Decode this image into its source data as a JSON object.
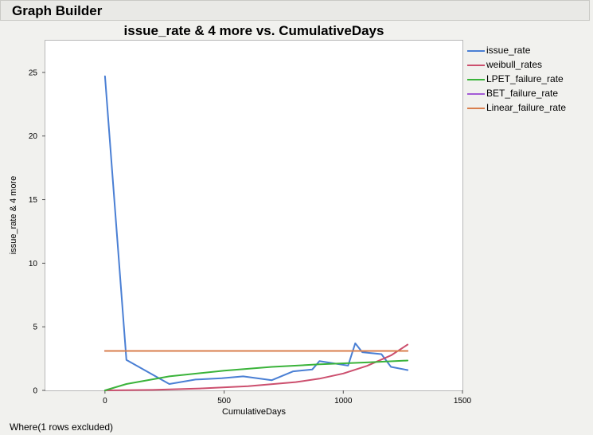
{
  "window": {
    "title": "Graph Builder"
  },
  "footnote": "Where(1 rows excluded)",
  "chart_data": {
    "type": "line",
    "title": "issue_rate & 4 more vs. CumulativeDays",
    "xlabel": "CumulativeDays",
    "ylabel": "issue_rate & 4 more",
    "xlim": [
      -250,
      1500
    ],
    "ylim": [
      0,
      27.5
    ],
    "x_ticks": [
      0,
      500,
      1000,
      1500
    ],
    "y_ticks": [
      0,
      5,
      10,
      15,
      20,
      25
    ],
    "grid": false,
    "legend_position": "right",
    "series": [
      {
        "name": "issue_rate",
        "color": "#4a7fd4",
        "x": [
          0,
          90,
          270,
          380,
          490,
          580,
          700,
          790,
          870,
          900,
          1020,
          1050,
          1080,
          1160,
          1200,
          1270
        ],
        "y": [
          24.7,
          2.4,
          0.5,
          0.85,
          0.95,
          1.1,
          0.8,
          1.5,
          1.65,
          2.3,
          1.95,
          3.7,
          3.0,
          2.85,
          1.85,
          1.6
        ]
      },
      {
        "name": "weibull_rates",
        "color": "#cc4f6e",
        "x": [
          0,
          200,
          400,
          600,
          800,
          900,
          1000,
          1100,
          1200,
          1270
        ],
        "y": [
          0,
          0.04,
          0.15,
          0.33,
          0.65,
          0.92,
          1.33,
          1.93,
          2.75,
          3.6
        ]
      },
      {
        "name": "LPET_failure_rate",
        "color": "#3ab33a",
        "x": [
          0,
          90,
          270,
          500,
          700,
          900,
          1100,
          1270
        ],
        "y": [
          0,
          0.5,
          1.1,
          1.55,
          1.85,
          2.05,
          2.2,
          2.35
        ]
      },
      {
        "name": "BET_failure_rate",
        "color": "#a35bd6",
        "x": [
          0,
          1270
        ],
        "y": [
          3.1,
          3.1
        ]
      },
      {
        "name": "Linear_failure_rate",
        "color": "#d97f4e",
        "x": [
          0,
          1270
        ],
        "y": [
          3.1,
          3.1
        ]
      }
    ]
  }
}
